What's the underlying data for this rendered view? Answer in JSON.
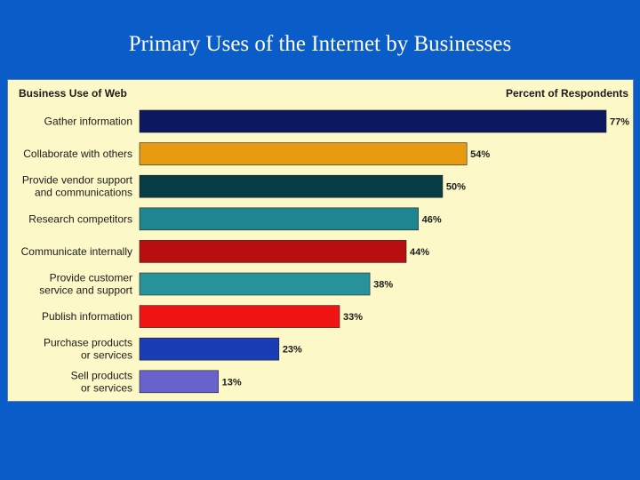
{
  "slide": {
    "title": "Primary Uses of the Internet by Businesses"
  },
  "chart_data": {
    "type": "bar",
    "orientation": "horizontal",
    "category_header": "Business Use of Web",
    "value_header": "Percent of Respondents",
    "categories": [
      [
        "Gather information"
      ],
      [
        "Collaborate with others"
      ],
      [
        "Provide vendor support",
        "and communications"
      ],
      [
        "Research competitors"
      ],
      [
        "Communicate internally"
      ],
      [
        "Provide customer",
        "service and support"
      ],
      [
        "Publish information"
      ],
      [
        "Purchase products",
        "or services"
      ],
      [
        "Sell products",
        "or services"
      ]
    ],
    "values": [
      77,
      54,
      50,
      46,
      44,
      38,
      33,
      23,
      13
    ],
    "value_labels": [
      "77%",
      "54%",
      "50%",
      "46%",
      "44%",
      "38%",
      "33%",
      "23%",
      "13%"
    ],
    "colors": [
      "#0c1860",
      "#e89a10",
      "#073c44",
      "#1f8590",
      "#b80e10",
      "#28929c",
      "#f01414",
      "#1a3cb4",
      "#6a62cc"
    ],
    "xlim": [
      0,
      77
    ],
    "grid": false,
    "legend": "none"
  }
}
